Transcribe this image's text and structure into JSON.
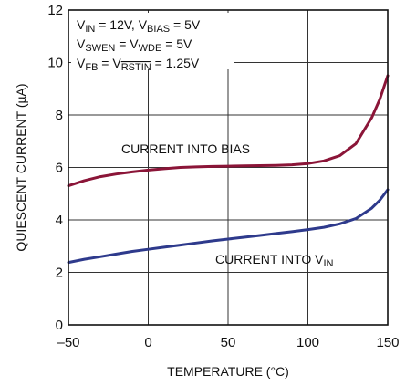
{
  "chart_data": {
    "type": "line",
    "xlabel": "TEMPERATURE (°C)",
    "ylabel": "QUIESCENT CURRENT (µA)",
    "xlim": [
      -50,
      150
    ],
    "ylim": [
      0,
      12
    ],
    "xticks": [
      -50,
      0,
      50,
      100,
      150
    ],
    "yticks": [
      0,
      2,
      4,
      6,
      8,
      10,
      12
    ],
    "x_tick_labels": [
      "–50",
      "0",
      "50",
      "100",
      "150"
    ],
    "y_tick_labels": [
      "0",
      "2",
      "4",
      "6",
      "8",
      "10",
      "12"
    ],
    "grid": true,
    "conditions": [
      [
        {
          "t": "V",
          "s": ""
        },
        {
          "t": "IN",
          "s": "sub"
        },
        {
          "t": " = 12V,  V",
          "s": ""
        },
        {
          "t": "BIAS",
          "s": "sub"
        },
        {
          "t": " = 5V",
          "s": ""
        }
      ],
      [
        {
          "t": "V",
          "s": ""
        },
        {
          "t": "SWEN",
          "s": "sub"
        },
        {
          "t": " = V",
          "s": ""
        },
        {
          "t": "WDE",
          "s": "sub"
        },
        {
          "t": " = 5V",
          "s": ""
        }
      ],
      [
        {
          "t": "V",
          "s": ""
        },
        {
          "t": "FB",
          "s": "sub"
        },
        {
          "t": " = V",
          "s": ""
        },
        {
          "t": "RSTIN",
          "s": "sub-over"
        },
        {
          "t": " = 1.25V",
          "s": ""
        }
      ]
    ],
    "series": [
      {
        "label_parts": [
          {
            "t": "CURRENT INTO BIAS",
            "s": ""
          }
        ],
        "color": "#8b1538",
        "points": [
          [
            -50,
            5.3
          ],
          [
            -40,
            5.5
          ],
          [
            -30,
            5.65
          ],
          [
            -20,
            5.75
          ],
          [
            -10,
            5.83
          ],
          [
            0,
            5.9
          ],
          [
            10,
            5.95
          ],
          [
            20,
            6.0
          ],
          [
            30,
            6.02
          ],
          [
            40,
            6.04
          ],
          [
            50,
            6.05
          ],
          [
            60,
            6.06
          ],
          [
            70,
            6.07
          ],
          [
            80,
            6.08
          ],
          [
            90,
            6.1
          ],
          [
            100,
            6.15
          ],
          [
            110,
            6.25
          ],
          [
            120,
            6.45
          ],
          [
            130,
            6.9
          ],
          [
            140,
            7.9
          ],
          [
            145,
            8.6
          ],
          [
            150,
            9.5
          ]
        ]
      },
      {
        "label_parts": [
          {
            "t": "CURRENT INTO V",
            "s": ""
          },
          {
            "t": "IN",
            "s": "sub"
          }
        ],
        "color": "#2e3a8c",
        "points": [
          [
            -50,
            2.38
          ],
          [
            -40,
            2.5
          ],
          [
            -30,
            2.6
          ],
          [
            -20,
            2.7
          ],
          [
            -10,
            2.8
          ],
          [
            0,
            2.88
          ],
          [
            10,
            2.96
          ],
          [
            20,
            3.04
          ],
          [
            30,
            3.12
          ],
          [
            40,
            3.2
          ],
          [
            50,
            3.27
          ],
          [
            60,
            3.34
          ],
          [
            70,
            3.41
          ],
          [
            80,
            3.48
          ],
          [
            90,
            3.55
          ],
          [
            100,
            3.63
          ],
          [
            110,
            3.72
          ],
          [
            120,
            3.85
          ],
          [
            130,
            4.05
          ],
          [
            140,
            4.45
          ],
          [
            145,
            4.75
          ],
          [
            150,
            5.15
          ]
        ]
      }
    ]
  }
}
